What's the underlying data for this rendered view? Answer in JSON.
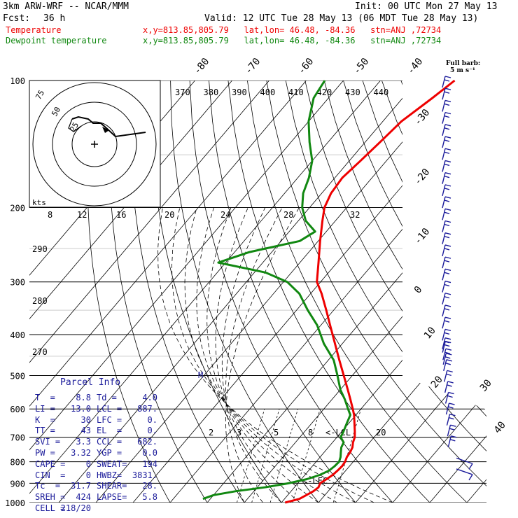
{
  "header": {
    "model": "3km ARW-WRF -- NCAR/MMM",
    "init": "Init: 00 UTC Mon 27 May 13",
    "fcst_label": "Fcst:",
    "fcst_value": "36 h",
    "valid": "Valid: 12 UTC Tue 28 May 13 (06 MDT Tue 28 May 13)",
    "line_temp": "Temperature",
    "line_dew": "Dewpoint temperature",
    "loc": "x,y=813.85,805.79   lat,lon= 46.48, -84.36   stn=ANJ ,72734",
    "color_temp": "#ee0000",
    "color_dew": "#118811"
  },
  "barb_legend": {
    "title": "Full barb:",
    "value": "5 m s⁻¹"
  },
  "hodograph": {
    "units": "kts",
    "rings": [
      "25",
      "50",
      "75"
    ]
  },
  "labels": {
    "theta_e": [
      "370",
      "380",
      "390",
      "400",
      "410",
      "420",
      "430",
      "440"
    ],
    "mixing_ratio": [
      "2",
      "3",
      "5",
      "8",
      "20"
    ],
    "lcl_marker": "<-LCL",
    "lfc_marker": "<-LFC",
    "m_marker": "M",
    "iso_top": [
      "8",
      "12",
      "16",
      "20",
      "24",
      "28",
      "32"
    ],
    "theta_left": [
      "290",
      "280",
      "270"
    ],
    "iso_diag": [
      "-80",
      "-70",
      "-60",
      "-50",
      "-40",
      "-30",
      "-20",
      "-10",
      "0",
      "10",
      "20",
      "30",
      "40"
    ]
  },
  "parcel": {
    "title": "Parcel Info",
    "rows": [
      [
        "T  =",
        "8.8",
        "Td =",
        "4.0"
      ],
      [
        "LI =",
        "13.0",
        "LCL =",
        "887."
      ],
      [
        "K  =",
        "30",
        "LFC =",
        "0."
      ],
      [
        "TT =",
        "43",
        "EL  =",
        "0."
      ],
      [
        "SVI =",
        "3.3",
        "CCL =",
        "682."
      ],
      [
        "PW =",
        "3.32",
        "YGP =",
        "0.0"
      ],
      [
        "CAPE =",
        "0",
        "SWEAT=",
        "194"
      ],
      [
        "CIN  =",
        "0",
        "HWBZ=",
        "3831."
      ],
      [
        "Tc  =",
        "31.7",
        "SHEAR=",
        "28."
      ],
      [
        "SREH =",
        "424",
        "LAPSE=",
        "5.8"
      ],
      [
        "CELL =",
        "218/20",
        "",
        ""
      ]
    ]
  },
  "chart_data": {
    "type": "line",
    "title": "",
    "ylabel": "",
    "y_scale": "log-pressure",
    "y_ticks": [
      "100",
      "200",
      "300",
      "400",
      "500",
      "600",
      "700",
      "800",
      "900",
      "1000"
    ],
    "series": [
      {
        "name": "Temperature",
        "pressure": [
          1000,
          980,
          960,
          940,
          920,
          900,
          880,
          860,
          840,
          820,
          800,
          780,
          760,
          740,
          720,
          700,
          680,
          650,
          620,
          600,
          570,
          540,
          500,
          460,
          420,
          380,
          350,
          320,
          300,
          270,
          240,
          215,
          200,
          185,
          170,
          155,
          140,
          125,
          110,
          100
        ],
        "values": [
          1.0,
          4.0,
          5.0,
          6.0,
          6.5,
          6.0,
          6.8,
          7.5,
          7.8,
          8.0,
          7.8,
          7.2,
          7.0,
          6.5,
          5.5,
          4.8,
          3.6,
          1.6,
          -0.5,
          -2.2,
          -5.0,
          -8.0,
          -12.3,
          -17.0,
          -22.0,
          -27.5,
          -32.0,
          -37.0,
          -41.0,
          -45.0,
          -49.5,
          -53.5,
          -56.0,
          -57.5,
          -58.0,
          -57.0,
          -56.0,
          -55.0,
          -52.0,
          -50.0
        ]
      },
      {
        "name": "Dewpoint temperature",
        "pressure": [
          980,
          960,
          940,
          920,
          900,
          880,
          860,
          840,
          820,
          800,
          780,
          760,
          740,
          720,
          700,
          680,
          650,
          620,
          600,
          570,
          540,
          500,
          460,
          420,
          380,
          350,
          320,
          300,
          285,
          270,
          255,
          240,
          228,
          215,
          200,
          185,
          170,
          155,
          140,
          125,
          110,
          100
        ],
        "values": [
          -22.0,
          -20.0,
          -15.0,
          -8.0,
          -2.5,
          1.5,
          4.0,
          5.5,
          6.0,
          6.2,
          5.5,
          4.5,
          3.5,
          3.0,
          1.0,
          0.5,
          -0.5,
          -1.5,
          -3.5,
          -6.5,
          -10.0,
          -14.0,
          -18.5,
          -25.0,
          -31.0,
          -37.0,
          -43.0,
          -49.0,
          -57.0,
          -72.0,
          -66.0,
          -55.0,
          -53.0,
          -58.0,
          -62.0,
          -65.0,
          -67.0,
          -70.0,
          -75.0,
          -80.0,
          -84.0,
          -85.0
        ]
      }
    ],
    "wind_barb_count": 36
  }
}
